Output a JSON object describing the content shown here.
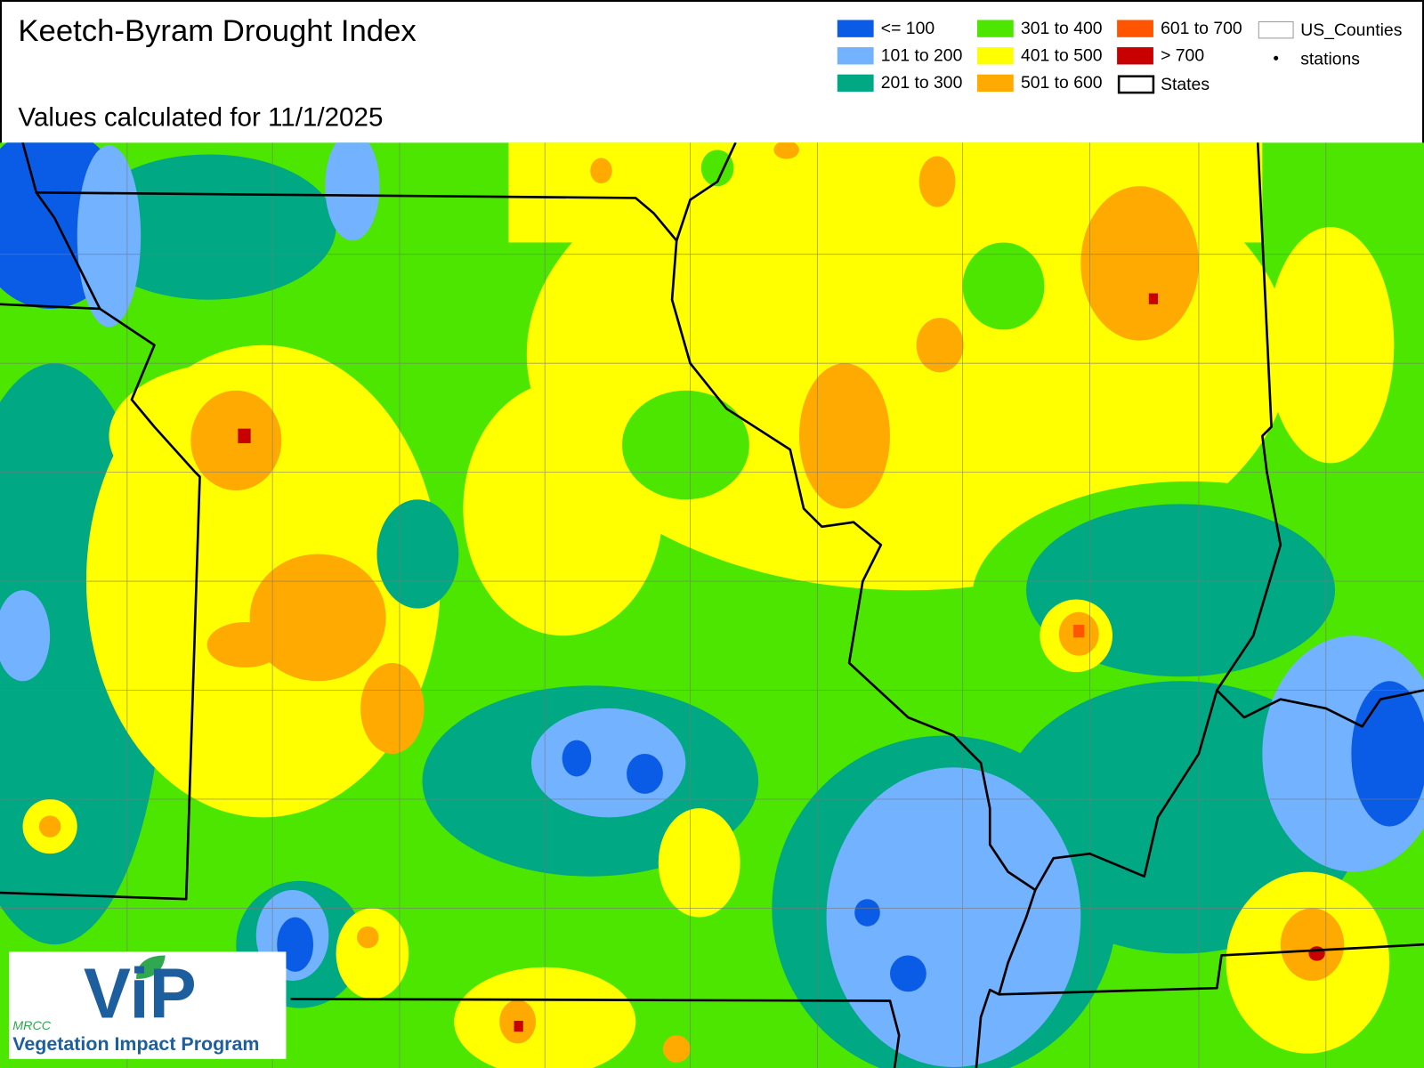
{
  "header": {
    "title": "Keetch-Byram Drought Index",
    "subtitle": "Values calculated for 11/1/2025"
  },
  "legend": [
    {
      "label": "<= 100",
      "color": "#0a5ce6"
    },
    {
      "label": "101 to 200",
      "color": "#73b2ff"
    },
    {
      "label": "201 to 300",
      "color": "#00a884"
    },
    {
      "label": "301 to 400",
      "color": "#4ce600"
    },
    {
      "label": "401 to 500",
      "color": "#ffff00"
    },
    {
      "label": "501 to 600",
      "color": "#ffaa00"
    },
    {
      "label": "601 to 700",
      "color": "#ff5500"
    },
    {
      "label": "> 700",
      "color": "#c80000"
    },
    {
      "label": "US_Counties"
    },
    {
      "label": "stations"
    },
    {
      "label": "States"
    }
  ],
  "logo": {
    "brand": "MRCC",
    "name": "ViP",
    "tagline": "Vegetation Impact Program"
  }
}
